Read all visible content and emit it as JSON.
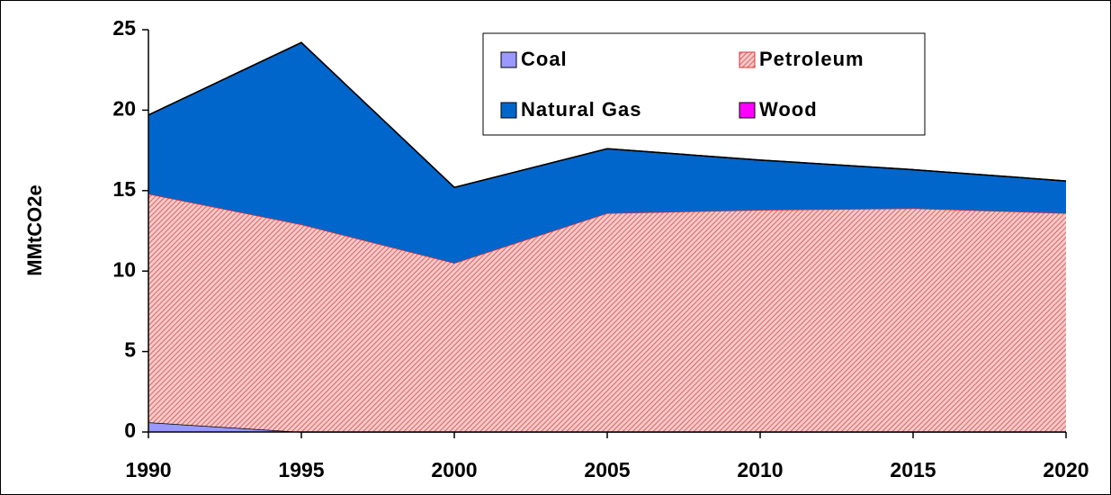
{
  "chart_data": {
    "type": "stacked-area",
    "y_label": "MMtCO2e",
    "x": [
      1990,
      1995,
      2000,
      2005,
      2010,
      2015,
      2020
    ],
    "xlim": [
      1990,
      2020
    ],
    "xticks": [
      1990,
      1995,
      2000,
      2005,
      2010,
      2015,
      2020
    ],
    "ylim": [
      0,
      25
    ],
    "yticks": [
      0,
      5,
      10,
      15,
      20,
      25
    ],
    "legend": "top-right",
    "series": [
      {
        "name": "Coal",
        "color": "#9999ff",
        "values": [
          0.6,
          0,
          0,
          0,
          0,
          0,
          0
        ]
      },
      {
        "name": "Petroleum",
        "color": "#e03030",
        "pattern": "hatch",
        "values": [
          14.2,
          12.9,
          10.5,
          13.6,
          13.8,
          13.9,
          13.6
        ]
      },
      {
        "name": "Natural Gas",
        "color": "#0066cc",
        "values": [
          4.9,
          11.3,
          4.7,
          4.0,
          3.1,
          2.4,
          2.0
        ]
      },
      {
        "name": "Wood",
        "color": "#ff00ff",
        "values": [
          0,
          0,
          0,
          0,
          0,
          0,
          0
        ]
      }
    ]
  }
}
